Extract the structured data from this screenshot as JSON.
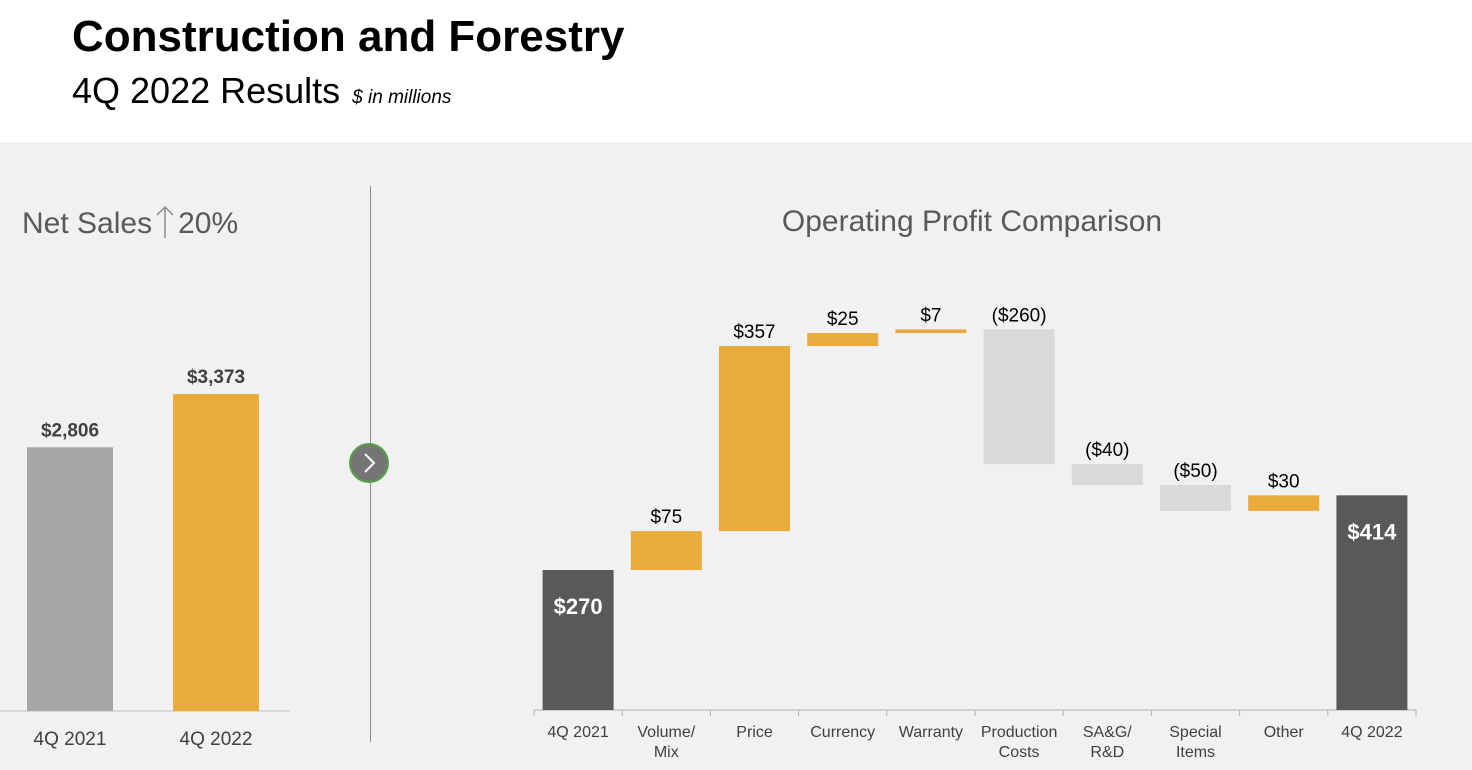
{
  "header": {
    "title": "Construction and Forestry",
    "subtitle": "4Q 2022 Results",
    "unit_note": "$ in millions"
  },
  "net_sales": {
    "title_prefix": "Net Sales",
    "title_change": "20%",
    "direction_icon": "up-arrow-icon"
  },
  "operating_profit": {
    "title": "Operating Profit Comparison"
  },
  "navigation": {
    "next_icon": "chevron-right-icon"
  },
  "colors": {
    "gray_bar": "#a6a6a6",
    "gold": "#e8ab3c",
    "dark": "#595959",
    "light_gray": "#d9d9d9",
    "panel": "#f1f1f1",
    "green_ring": "#53a344"
  },
  "chart_data": [
    {
      "type": "bar",
      "title": "Net Sales 20%",
      "categories": [
        "4Q 2021",
        "4Q 2022"
      ],
      "values": [
        2806,
        3373
      ],
      "labels": [
        "$2,806",
        "$3,373"
      ],
      "colors": [
        "#a6a6a6",
        "#e8ab3c"
      ]
    },
    {
      "type": "bar",
      "subtype": "waterfall",
      "title": "Operating Profit Comparison",
      "categories": [
        "4Q 2021",
        "Volume/ Mix",
        "Price",
        "Currency",
        "Warranty",
        "Production Costs",
        "SA&G/ R&D",
        "Special Items",
        "Other",
        "4Q 2022"
      ],
      "category_lines": [
        [
          "4Q 2021"
        ],
        [
          "Volume/",
          "Mix"
        ],
        [
          "Price"
        ],
        [
          "Currency"
        ],
        [
          "Warranty"
        ],
        [
          "Production",
          "Costs"
        ],
        [
          "SA&G/",
          "R&D"
        ],
        [
          "Special",
          "Items"
        ],
        [
          "Other"
        ],
        [
          "4Q 2022"
        ]
      ],
      "values": [
        270,
        75,
        357,
        25,
        7,
        -260,
        -40,
        -50,
        30,
        414
      ],
      "labels": [
        "$270",
        "$75",
        "$357",
        "$25",
        "$7",
        "($260)",
        "($40)",
        "($50)",
        "$30",
        "$414"
      ],
      "kinds": [
        "total",
        "delta",
        "delta",
        "delta",
        "delta",
        "delta",
        "delta",
        "delta",
        "delta",
        "total"
      ]
    }
  ]
}
